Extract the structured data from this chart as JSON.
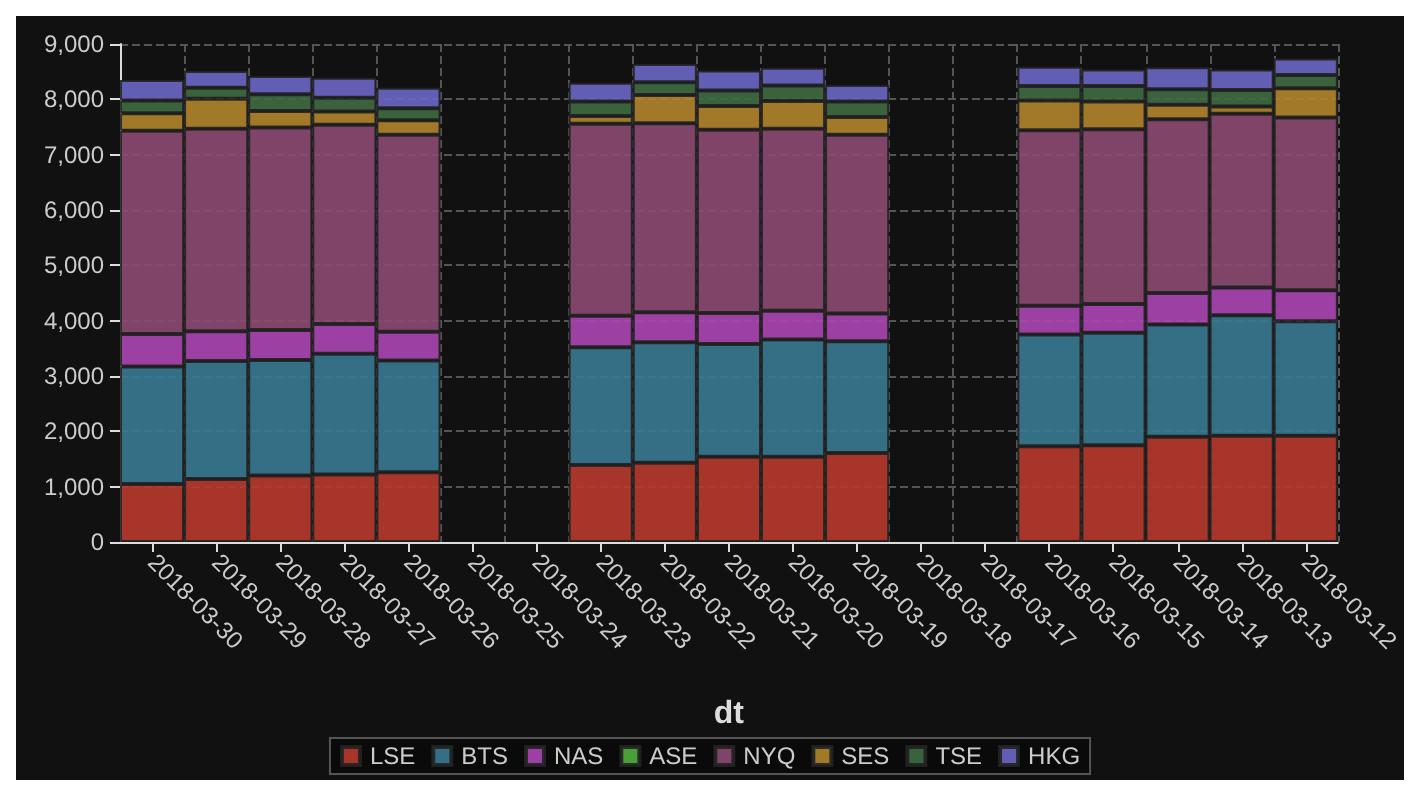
{
  "chart_data": {
    "type": "bar",
    "stacked": true,
    "xlabel": "dt",
    "categories": [
      "2018-03-30",
      "2018-03-29",
      "2018-03-28",
      "2018-03-27",
      "2018-03-26",
      "2018-03-25",
      "2018-03-24",
      "2018-03-23",
      "2018-03-22",
      "2018-03-21",
      "2018-03-20",
      "2018-03-19",
      "2018-03-18",
      "2018-03-17",
      "2018-03-16",
      "2018-03-15",
      "2018-03-14",
      "2018-03-13",
      "2018-03-12"
    ],
    "series": [
      {
        "name": "LSE",
        "color": "#b83a2e",
        "values": [
          1050,
          1140,
          1200,
          1220,
          1260,
          null,
          null,
          1390,
          1430,
          1540,
          1540,
          1610,
          null,
          null,
          1730,
          1750,
          1900,
          1920,
          1920
        ]
      },
      {
        "name": "BTS",
        "color": "#3a7a94",
        "values": [
          2120,
          2130,
          2090,
          2180,
          2020,
          null,
          null,
          2130,
          2180,
          2040,
          2120,
          2020,
          null,
          null,
          2020,
          2030,
          2030,
          2180,
          2070
        ]
      },
      {
        "name": "NAS",
        "color": "#ac46b4",
        "values": [
          590,
          540,
          540,
          540,
          520,
          null,
          null,
          570,
          540,
          560,
          520,
          500,
          null,
          null,
          520,
          520,
          570,
          500,
          560
        ]
      },
      {
        "name": "ASE",
        "color": "#4fb03c",
        "values": [
          0,
          0,
          0,
          0,
          0,
          null,
          null,
          0,
          0,
          0,
          0,
          0,
          null,
          null,
          0,
          0,
          0,
          0,
          0
        ]
      },
      {
        "name": "NYQ",
        "color": "#8c4a72",
        "values": [
          3670,
          3660,
          3660,
          3600,
          3560,
          null,
          null,
          3470,
          3420,
          3310,
          3290,
          3230,
          null,
          null,
          3170,
          3160,
          3140,
          3140,
          3120
        ]
      },
      {
        "name": "SES",
        "color": "#b3852c",
        "values": [
          320,
          540,
          300,
          240,
          260,
          null,
          null,
          140,
          510,
          430,
          500,
          320,
          null,
          null,
          540,
          500,
          260,
          130,
          530
        ]
      },
      {
        "name": "TSE",
        "color": "#3e6c42",
        "values": [
          230,
          200,
          300,
          250,
          220,
          null,
          null,
          260,
          230,
          280,
          280,
          280,
          null,
          null,
          260,
          280,
          280,
          300,
          240
        ]
      },
      {
        "name": "HKG",
        "color": "#6a67c6",
        "values": [
          370,
          300,
          330,
          360,
          370,
          null,
          null,
          340,
          330,
          360,
          320,
          300,
          null,
          null,
          350,
          300,
          400,
          370,
          300
        ]
      }
    ],
    "ylim": [
      0,
      9000
    ],
    "yticks": [
      0,
      {
        "value": 1000,
        "label": "1,000"
      },
      {
        "value": 2000,
        "label": "2,000"
      },
      {
        "value": 3000,
        "label": "3,000"
      },
      {
        "value": 4000,
        "label": "4,000"
      },
      {
        "value": 5000,
        "label": "5,000"
      },
      {
        "value": 6000,
        "label": "6,000"
      },
      {
        "value": 7000,
        "label": "7,000"
      },
      {
        "value": 8000,
        "label": "8,000"
      },
      {
        "value": 9000,
        "label": "9,000"
      }
    ],
    "grid": true,
    "legend": "bottom"
  }
}
